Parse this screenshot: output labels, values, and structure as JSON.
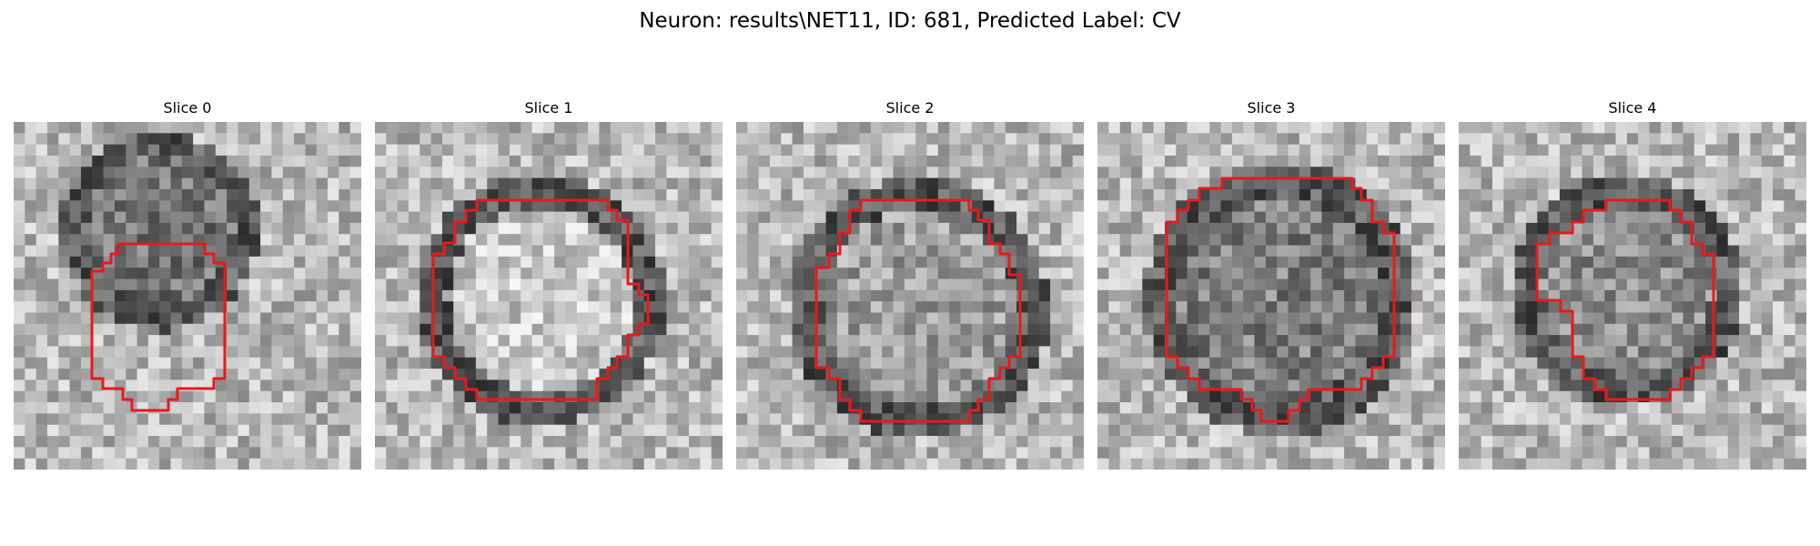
{
  "figure": {
    "title": "Neuron: results\\NET11, ID: 681, Predicted Label: CV",
    "contour_color": "#e8191c",
    "colormap": "gray",
    "panels": [
      {
        "title": "Slice 0",
        "image_alt": "grayscale microscopy slice 0 with red neuron contour"
      },
      {
        "title": "Slice 1",
        "image_alt": "grayscale microscopy slice 1 with red neuron contour"
      },
      {
        "title": "Slice 2",
        "image_alt": "grayscale microscopy slice 2 with red neuron contour"
      },
      {
        "title": "Slice 3",
        "image_alt": "grayscale microscopy slice 3 with red neuron contour"
      },
      {
        "title": "Slice 4",
        "image_alt": "grayscale microscopy slice 4 with red neuron contour"
      }
    ]
  }
}
